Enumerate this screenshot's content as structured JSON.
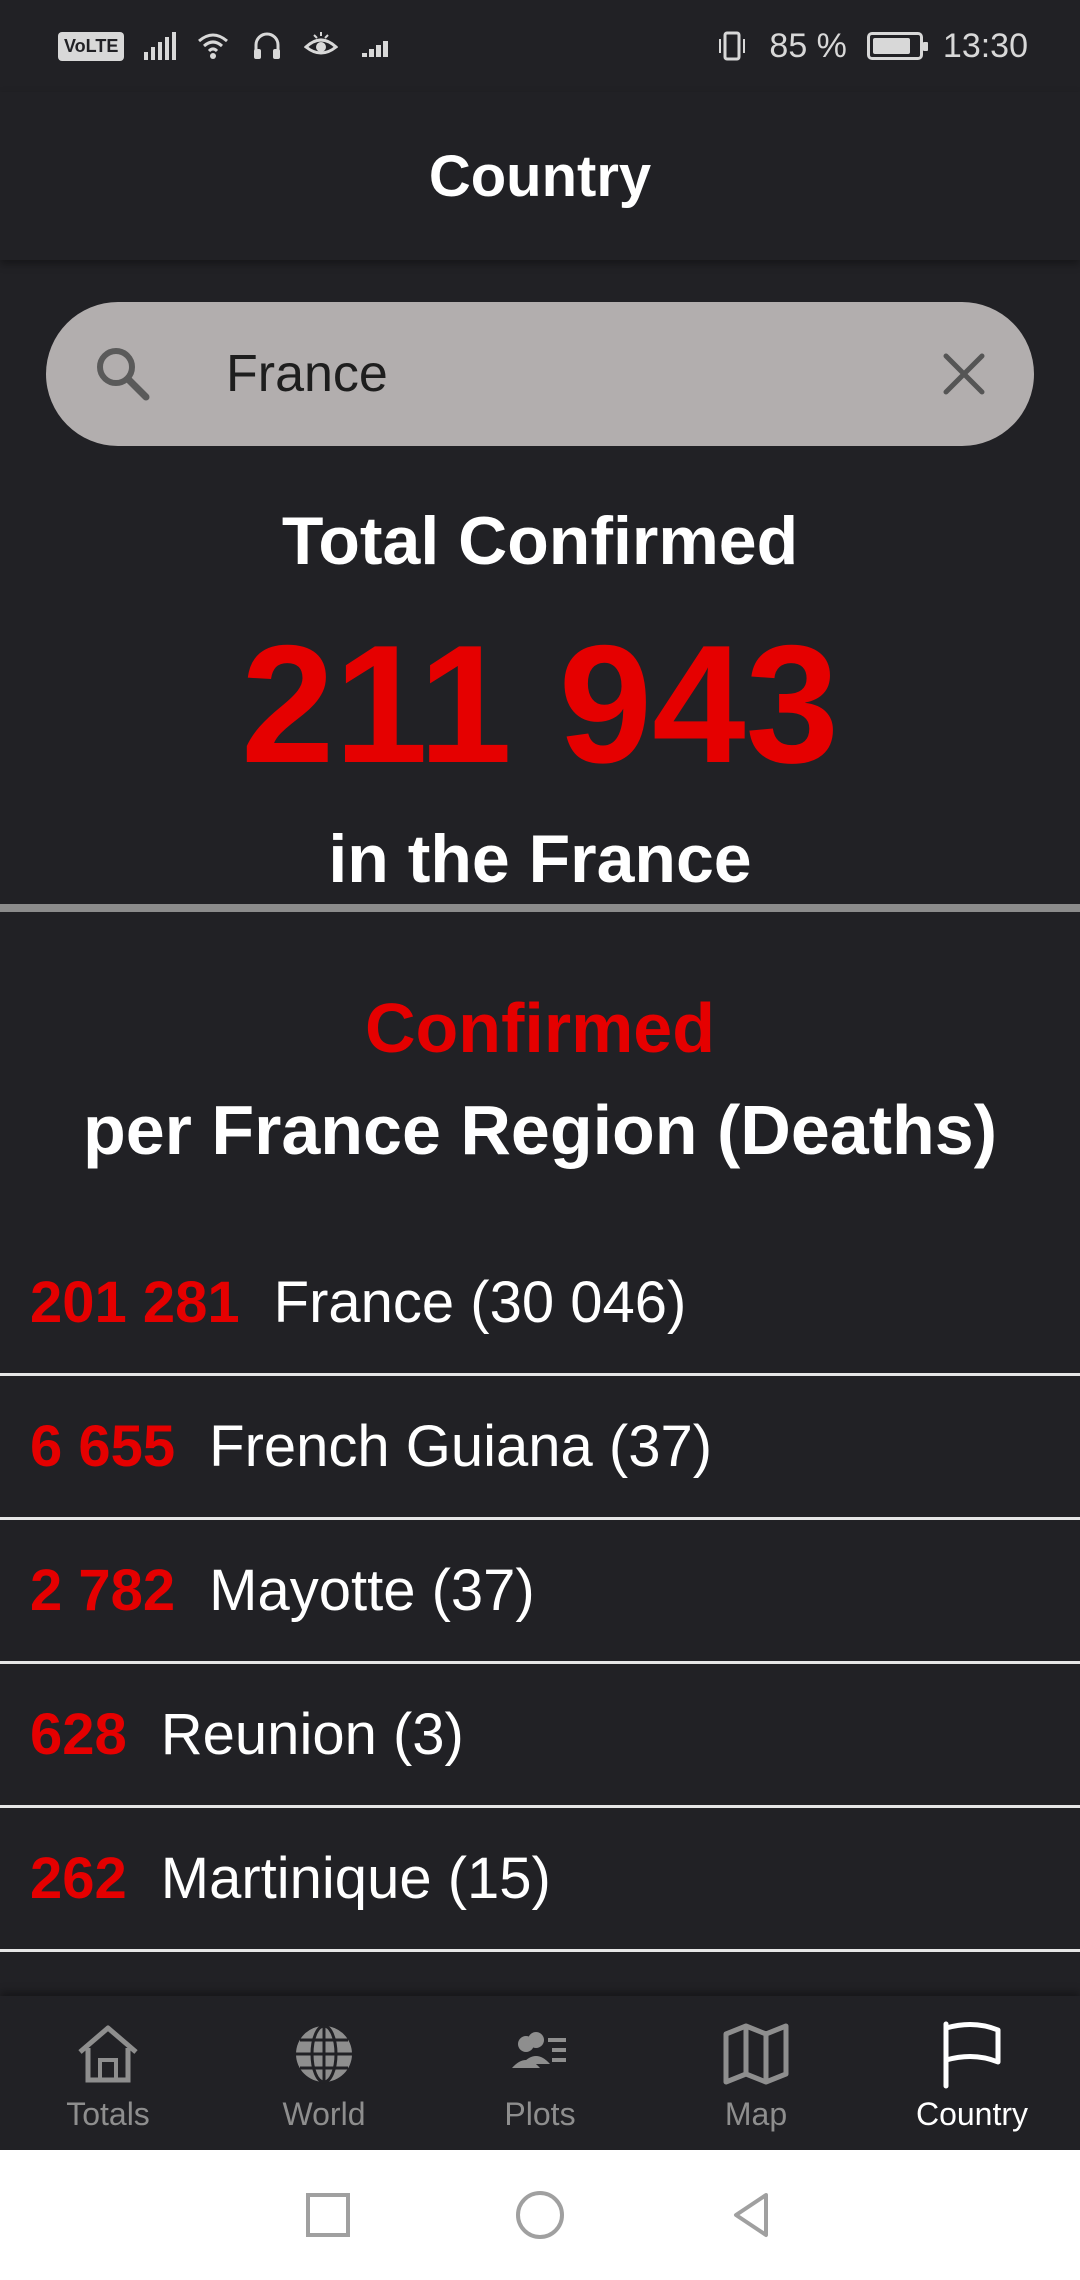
{
  "status_bar": {
    "volte": "VoLTE",
    "battery_percent": "85 %",
    "battery_level": 0.85,
    "time": "13:30"
  },
  "app_bar": {
    "title": "Country"
  },
  "search": {
    "value": "France",
    "placeholder": ""
  },
  "totals": {
    "label": "Total Confirmed",
    "value": "211 943",
    "subtitle": "in the France"
  },
  "regions": {
    "title_line1": "Confirmed",
    "title_line2": "per France Region (Deaths)",
    "items": [
      {
        "count": "201 281",
        "name": "France (30 046)"
      },
      {
        "count": "6 655",
        "name": "French Guiana (37)"
      },
      {
        "count": "2 782",
        "name": "Mayotte (37)"
      },
      {
        "count": "628",
        "name": "Reunion (3)"
      },
      {
        "count": "262",
        "name": "Martinique (15)"
      }
    ]
  },
  "bottom_nav": {
    "items": [
      {
        "label": "Totals",
        "icon": "home-icon"
      },
      {
        "label": "World",
        "icon": "globe-icon"
      },
      {
        "label": "Plots",
        "icon": "people-list-icon"
      },
      {
        "label": "Map",
        "icon": "map-icon"
      },
      {
        "label": "Country",
        "icon": "flag-icon"
      }
    ],
    "active_index": 4
  },
  "colors": {
    "background": "#212125",
    "accent_red": "#e50000",
    "search_bg": "#b2aeae"
  }
}
